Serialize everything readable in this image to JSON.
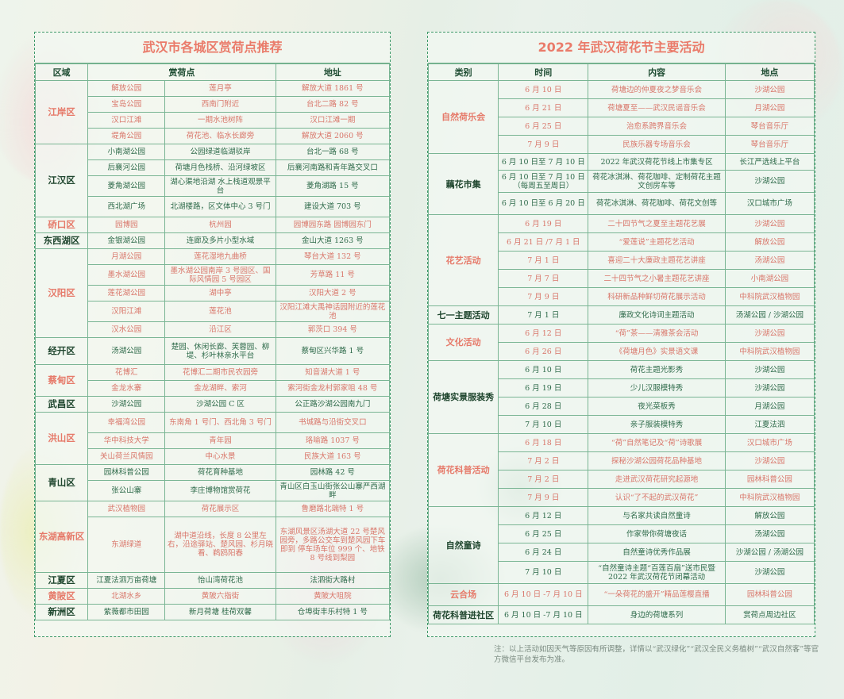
{
  "left": {
    "title": "武汉市各城区赏荷点推荐",
    "headers": [
      "区域",
      "赏荷点",
      "地址"
    ],
    "groups": [
      {
        "district": "江岸区",
        "style": "red",
        "rows": [
          {
            "c": "red",
            "h": 20,
            "cells": [
              "解放公园",
              "莲月亭",
              "解放大道 1861 号"
            ]
          },
          {
            "c": "red",
            "h": 20,
            "cells": [
              "宝岛公园",
              "西南门附近",
              "台北二路 82 号"
            ]
          },
          {
            "c": "red",
            "h": 20,
            "cells": [
              "汉口江滩",
              "一期水池树阵",
              "汉口江滩一期"
            ]
          },
          {
            "c": "red",
            "h": 20,
            "cells": [
              "堤角公园",
              "荷花池、临水长廊旁",
              "解放大道 2060 号"
            ]
          }
        ]
      },
      {
        "district": "江汉区",
        "style": "dk",
        "rows": [
          {
            "c": "green",
            "h": 20,
            "cells": [
              "小南湖公园",
              "公园绿道临湖驳岸",
              "台北一路 68 号"
            ]
          },
          {
            "c": "green",
            "h": 20,
            "cells": [
              "后襄河公园",
              "荷塘月色栈桥、沿河绿坡区",
              "后襄河南路和青年路交叉口"
            ]
          },
          {
            "c": "green",
            "h": 26,
            "cells": [
              "菱角湖公园",
              "湖心渠地沿湖 水上栈道观景平台",
              "菱角湖路 15 号"
            ]
          },
          {
            "c": "green",
            "h": 26,
            "cells": [
              "西北湖广场",
              "北湖楼路，区文体中心 3 号门",
              "建设大道 703 号"
            ]
          }
        ]
      },
      {
        "district": "硚口区",
        "style": "red",
        "rows": [
          {
            "c": "red",
            "h": 20,
            "cells": [
              "园博园",
              "杭州园",
              "园博园东路 园博园东门"
            ]
          }
        ]
      },
      {
        "district": "东西湖区",
        "style": "dk",
        "rows": [
          {
            "c": "green",
            "h": 20,
            "cells": [
              "金银湖公园",
              "连廊及多片小型水域",
              "金山大道 1263 号"
            ]
          }
        ]
      },
      {
        "district": "汉阳区",
        "style": "red",
        "rows": [
          {
            "c": "red",
            "h": 20,
            "cells": [
              "月湖公园",
              "莲花湿地九曲桥",
              "琴台大道 132 号"
            ]
          },
          {
            "c": "red",
            "h": 26,
            "cells": [
              "墨水湖公园",
              "墨水湖公园南岸 3 号园区、国际风情园 5 号园区",
              "芳草路 11 号"
            ]
          },
          {
            "c": "red",
            "h": 20,
            "cells": [
              "莲花湖公园",
              "湖中亭",
              "汉阳大道 2 号"
            ]
          },
          {
            "c": "red",
            "h": 26,
            "cells": [
              "汉阳江滩",
              "莲花池",
              "汉阳江滩大禹神话园附近的莲花池"
            ]
          },
          {
            "c": "red",
            "h": 20,
            "cells": [
              "汉水公园",
              "沿江区",
              "郭茨口 394 号"
            ]
          }
        ]
      },
      {
        "district": "经开区",
        "style": "dk",
        "rows": [
          {
            "c": "green",
            "h": 34,
            "cells": [
              "汤湖公园",
              "楚园、休闲长廊、芙蓉园、柳堤、杉叶林亲水平台",
              "蔡甸区兴华路 1 号"
            ]
          }
        ]
      },
      {
        "district": "蔡甸区",
        "style": "red",
        "rows": [
          {
            "c": "red",
            "h": 20,
            "cells": [
              "花博汇",
              "花博汇二期市民农园旁",
              "知音湖大道 1 号"
            ]
          },
          {
            "c": "red",
            "h": 20,
            "cells": [
              "金龙水寨",
              "金龙湖畔、索河",
              "索河街金龙村郭家咀 48 号"
            ]
          }
        ]
      },
      {
        "district": "武昌区",
        "style": "dk",
        "rows": [
          {
            "c": "green",
            "h": 20,
            "cells": [
              "沙湖公园",
              "沙湖公园 C 区",
              "公正路沙湖公园南九门"
            ]
          }
        ]
      },
      {
        "district": "洪山区",
        "style": "red",
        "rows": [
          {
            "c": "red",
            "h": 26,
            "cells": [
              "幸福湾公园",
              "东南角 1 号门、西北角 3 号门",
              "书城路与沿街交叉口"
            ]
          },
          {
            "c": "red",
            "h": 20,
            "cells": [
              "华中科技大学",
              "青年园",
              "珞喻路 1037 号"
            ]
          },
          {
            "c": "red",
            "h": 20,
            "cells": [
              "关山荷兰风情园",
              "中心水景",
              "民族大道 163 号"
            ]
          }
        ]
      },
      {
        "district": "青山区",
        "style": "dk",
        "rows": [
          {
            "c": "green",
            "h": 20,
            "cells": [
              "园林科普公园",
              "荷花育种基地",
              "园林路 42 号"
            ]
          },
          {
            "c": "green",
            "h": 26,
            "cells": [
              "张公山寨",
              "李庄博物馆赏荷花",
              "青山区白玉山街张公山寨严西湖畔"
            ]
          }
        ]
      },
      {
        "district": "东湖高新区",
        "style": "red",
        "rows": [
          {
            "c": "red",
            "h": 20,
            "cells": [
              "武汉植物园",
              "荷花展示区",
              "鲁磨路北端特 1 号"
            ]
          }
        ]
      },
      {
        "district": "",
        "style": "red",
        "rows": [
          {
            "c": "red",
            "h": 70,
            "cells": [
              "东湖绿道",
              "湖中道沿线，长度 8 公里左右，沿途驿站、楚风园、杉月晓看、鹈鸥阳春",
              "东湖风景区汤湖大道 22 号楚风园旁，多路公交车到楚风园下车即到 停车场车位 999 个、地铁 8 号线到梨园"
            ]
          }
        ]
      },
      {
        "district": "江夏区",
        "style": "dk",
        "rows": [
          {
            "c": "green",
            "h": 20,
            "cells": [
              "江夏法泗万亩荷塘",
              "怡山湾荷花池",
              "法泗街大路村"
            ]
          }
        ]
      },
      {
        "district": "黄陂区",
        "style": "red",
        "rows": [
          {
            "c": "red",
            "h": 20,
            "cells": [
              "北湖水乡",
              "黄陂六指街",
              "黄陂大咀院"
            ]
          }
        ]
      },
      {
        "district": "新洲区",
        "style": "dk",
        "rows": [
          {
            "c": "green",
            "h": 20,
            "cells": [
              "紫薇都市田园",
              "新月荷塘 桂荷双馨",
              "仓埠街丰乐村特 1 号"
            ]
          }
        ]
      }
    ]
  },
  "right": {
    "title": "2022 年武汉荷花节主要活动",
    "headers": [
      "类别",
      "时间",
      "内容",
      "地点"
    ],
    "groups": [
      {
        "category": "自然荷乐会",
        "style": "red",
        "rows": [
          {
            "c": "red",
            "h": 23,
            "cells": [
              "6 月 10 日",
              "荷塘边的仲夏夜之梦音乐会",
              "沙湖公园"
            ]
          },
          {
            "c": "red",
            "h": 23,
            "cells": [
              "6 月 21 日",
              "荷塘夏至——武汉民谣音乐会",
              "月湖公园"
            ]
          },
          {
            "c": "red",
            "h": 23,
            "cells": [
              "6 月 25 日",
              "治愈系跨界音乐会",
              "琴台音乐厅"
            ]
          },
          {
            "c": "red",
            "h": 23,
            "cells": [
              "7 月 9 日",
              "民族乐器专场音乐会",
              "琴台音乐厅"
            ]
          }
        ]
      },
      {
        "category": "藕花市集",
        "style": "dk",
        "rows": [
          {
            "c": "green",
            "h": 21,
            "cells": [
              "6 月 10 日至 7 月 10 日",
              "2022 年武汉荷花节线上市集专区",
              "长江严选线上平台"
            ]
          },
          {
            "c": "green",
            "h": 28,
            "cells": [
              "6 月 10 日至 7 月 10 日（每周五至周日）",
              "荷花冰淇淋、荷花咖啡、定制荷花主题文创房车等",
              "沙湖公园"
            ]
          },
          {
            "c": "green",
            "h": 28,
            "cells": [
              "6 月 10 日至 6 月 20 日",
              "荷花冰淇淋、荷花咖啡、荷花文创等",
              "汉口城市广场"
            ]
          }
        ]
      },
      {
        "category": "花艺活动",
        "style": "red",
        "rows": [
          {
            "c": "red",
            "h": 23,
            "cells": [
              "6 月 19 日",
              "二十四节气之夏至主题花艺展",
              "沙湖公园"
            ]
          },
          {
            "c": "red",
            "h": 23,
            "cells": [
              "6 月 21 日 /7 月 1 日",
              "“爱莲说”主题花艺活动",
              "解放公园"
            ]
          },
          {
            "c": "red",
            "h": 23,
            "cells": [
              "7 月 1 日",
              "喜迎二十大廉政主题花艺讲座",
              "汤湖公园"
            ]
          },
          {
            "c": "red",
            "h": 23,
            "cells": [
              "7 月 7 日",
              "二十四节气之小暑主题花艺讲座",
              "小南湖公园"
            ]
          },
          {
            "c": "red",
            "h": 23,
            "cells": [
              "7 月 9 日",
              "科研新品种鲜切荷花展示活动",
              "中科院武汉植物园"
            ]
          }
        ]
      },
      {
        "category": "七一主题活动",
        "style": "dk",
        "rows": [
          {
            "c": "green",
            "h": 23,
            "cells": [
              "7 月 1 日",
              "廉政文化诗词主题活动",
              "汤湖公园 / 沙湖公园"
            ]
          }
        ]
      },
      {
        "category": "文化活动",
        "style": "red",
        "rows": [
          {
            "c": "red",
            "h": 23,
            "cells": [
              "6 月 12 日",
              "“荷”茶——清雅茶会活动",
              "沙湖公园"
            ]
          },
          {
            "c": "red",
            "h": 23,
            "cells": [
              "6 月 26 日",
              "《荷塘月色》实景语文课",
              "中科院武汉植物园"
            ]
          }
        ]
      },
      {
        "category": "荷塘实景服装秀",
        "style": "dk",
        "rows": [
          {
            "c": "green",
            "h": 23,
            "cells": [
              "6 月 10 日",
              "荷花主题光影秀",
              "沙湖公园"
            ]
          },
          {
            "c": "green",
            "h": 23,
            "cells": [
              "6 月 19 日",
              "少儿汉服模特秀",
              "沙湖公园"
            ]
          },
          {
            "c": "green",
            "h": 23,
            "cells": [
              "6 月 28 日",
              "夜光菜板秀",
              "月湖公园"
            ]
          },
          {
            "c": "green",
            "h": 23,
            "cells": [
              "7 月 10 日",
              "亲子服装模特秀",
              "江夏法泗"
            ]
          }
        ]
      },
      {
        "category": "荷花科普活动",
        "style": "red",
        "rows": [
          {
            "c": "red",
            "h": 23,
            "cells": [
              "6 月 18 日",
              "“荷”自然笔记及“荷”诗歌展",
              "汉口城市广场"
            ]
          },
          {
            "c": "red",
            "h": 23,
            "cells": [
              "7 月 2 日",
              "探秘沙湖公园荷花品种基地",
              "沙湖公园"
            ]
          },
          {
            "c": "red",
            "h": 23,
            "cells": [
              "7 月 2 日",
              "走进武汉荷花研究起源地",
              "园林科普公园"
            ]
          },
          {
            "c": "red",
            "h": 23,
            "cells": [
              "7 月 9 日",
              "认识“了不起的武汉荷花”",
              "中科院武汉植物园"
            ]
          }
        ]
      },
      {
        "category": "自然童诗",
        "style": "dk",
        "rows": [
          {
            "c": "green",
            "h": 23,
            "cells": [
              "6 月 12 日",
              "与名家共读自然童诗",
              "解放公园"
            ]
          },
          {
            "c": "green",
            "h": 23,
            "cells": [
              "6 月 25 日",
              "作家带你荷塘夜话",
              "汤湖公园"
            ]
          },
          {
            "c": "green",
            "h": 23,
            "cells": [
              "6 月 24 日",
              "自然童诗优秀作品展",
              "沙湖公园 / 汤湖公园"
            ]
          },
          {
            "c": "green",
            "h": 28,
            "cells": [
              "7 月 10 日",
              "“自然童诗主题“百莲百扇”送市民暨 2022 年武汉荷花节闭幕活动",
              "沙湖公园"
            ]
          }
        ]
      },
      {
        "category": "云合场",
        "style": "red",
        "rows": [
          {
            "c": "red",
            "h": 28,
            "cells": [
              "6 月 10 日 -7 月 10 日",
              "“一朵荷花的盛开”精品莲樱直播",
              "园林科普公园"
            ]
          }
        ]
      },
      {
        "category": "荷花科普进社区",
        "style": "dk",
        "rows": [
          {
            "c": "green",
            "h": 23,
            "cells": [
              "6 月 10 日 -7 月 10 日",
              "身边的荷塘系列",
              "赏荷点周边社区"
            ]
          }
        ]
      }
    ]
  },
  "note": "注：以上活动如因天气等原因有所调整，详情以“武汉绿化”“武汉全民义务植树”“武汉自然客”等官方微信平台发布为准。"
}
